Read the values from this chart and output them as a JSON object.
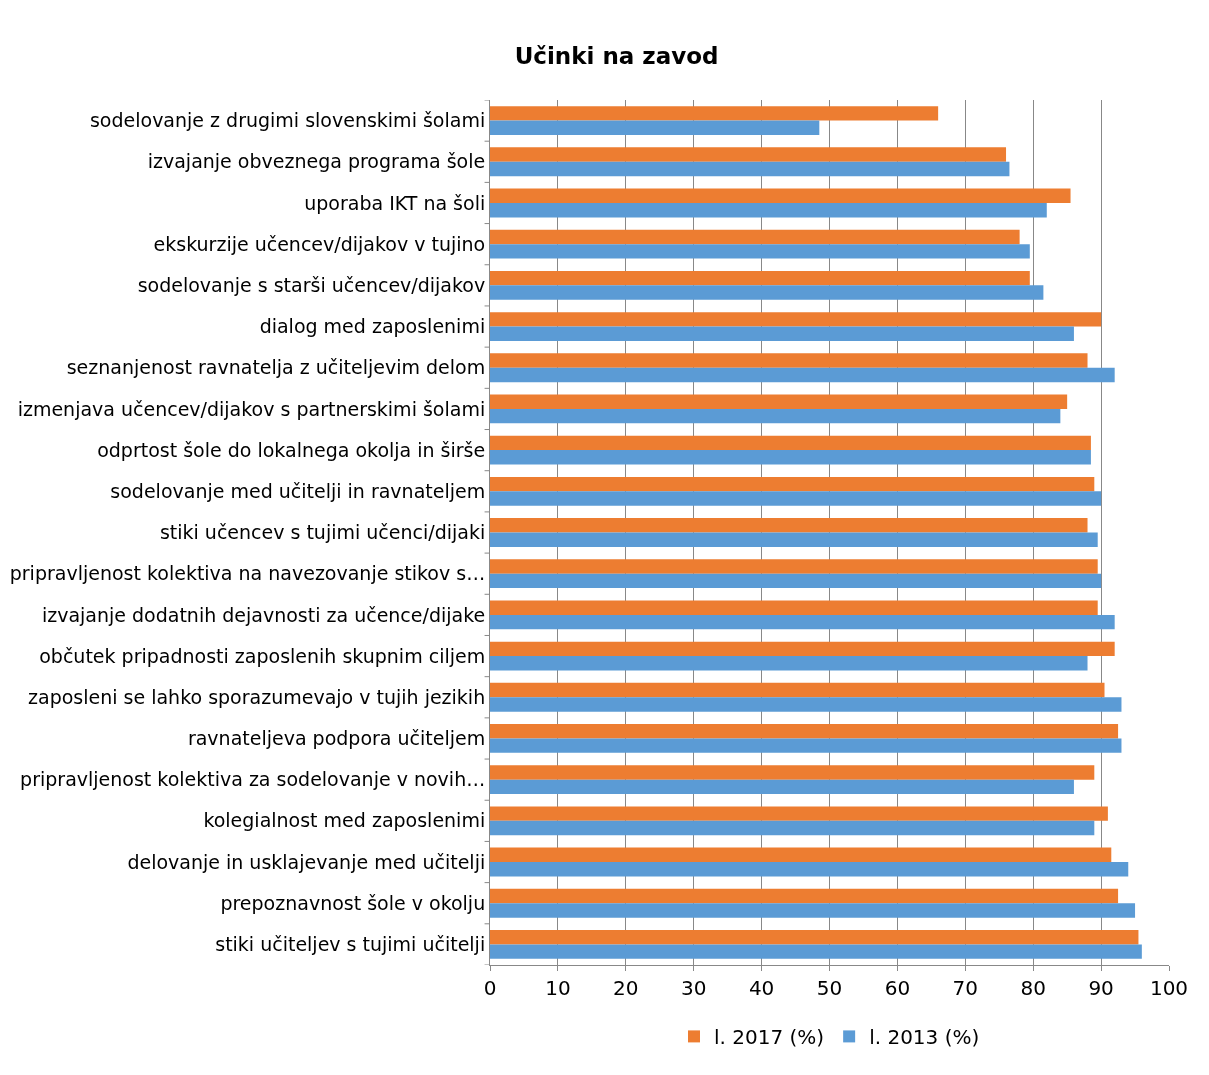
{
  "chart_data": {
    "type": "bar",
    "orientation": "horizontal",
    "title": "Učinki na zavod",
    "categories": [
      "sodelovanje z drugimi slovenskimi šolami",
      "izvajanje obveznega programa šole",
      "uporaba IKT na šoli",
      "ekskurzije učencev/dijakov v tujino",
      "sodelovanje s starši učencev/dijakov",
      "dialog med zaposlenimi",
      "seznanjenost ravnatelja z učiteljevim delom",
      "izmenjava učencev/dijakov s partnerskimi šolami",
      "odprtost šole do lokalnega okolja in širše",
      "sodelovanje med učitelji in ravnateljem",
      "stiki učencev s tujimi učenci/dijaki",
      "pripravljenost kolektiva na navezovanje stikov s…",
      "izvajanje dodatnih dejavnosti za učence/dijake",
      "občutek pripadnosti zaposlenih skupnim ciljem",
      "zaposleni se lahko sporazumevajo v tujih jezikih",
      "ravnateljeva podpora učiteljem",
      "pripravljenost kolektiva za sodelovanje v novih…",
      "kolegialnost med zaposlenimi",
      "delovanje in usklajevanje med učitelji",
      "prepoznavnost šole v okolju",
      "stiki učiteljev s tujimi učitelji"
    ],
    "series": [
      {
        "name": "l. 2017 (%)",
        "color": "#ed7d31",
        "values": [
          66,
          76,
          85.5,
          78,
          79.5,
          90,
          88,
          85,
          88.5,
          89,
          88,
          89.5,
          89.5,
          92,
          90.5,
          92.5,
          89,
          91,
          91.5,
          92.5,
          95.5
        ]
      },
      {
        "name": "l. 2013 (%)",
        "color": "#5b9bd5",
        "values": [
          48.5,
          76.5,
          82,
          79.5,
          81.5,
          86,
          92,
          84,
          88.5,
          90,
          89.5,
          90,
          92,
          88,
          93,
          93,
          86,
          89,
          94,
          95,
          96
        ]
      }
    ],
    "xlim": [
      0,
      100
    ],
    "xticks": [
      0,
      10,
      20,
      30,
      40,
      50,
      60,
      70,
      80,
      90,
      100
    ],
    "grid": "x",
    "legend": "bottom"
  }
}
